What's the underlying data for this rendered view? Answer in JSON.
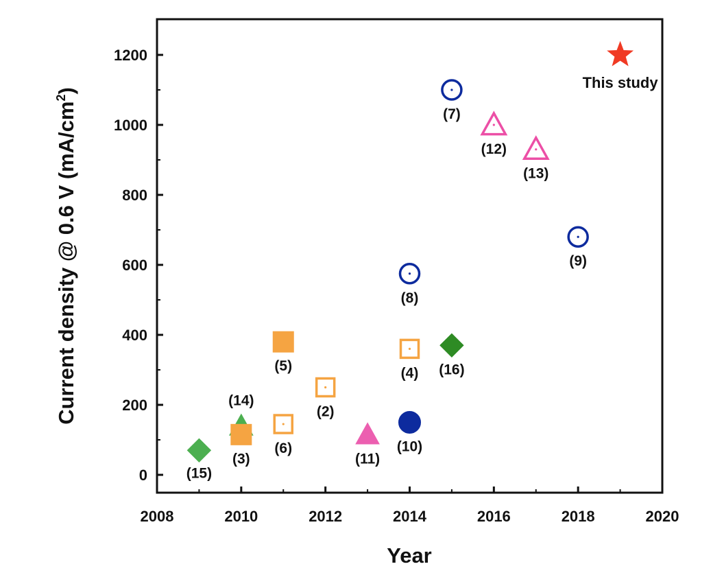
{
  "chart_data": {
    "type": "scatter",
    "xlabel": "Year",
    "ylabel": "Current density @ 0.6 V (mA/cm",
    "ylabel_sup": "2",
    "ylabel_close": ")",
    "xlim": [
      2008,
      2020
    ],
    "ylim": [
      -50,
      1300
    ],
    "xticks": [
      2008,
      2010,
      2012,
      2014,
      2016,
      2018,
      2020
    ],
    "yticks": [
      0,
      200,
      400,
      600,
      800,
      1000,
      1200
    ],
    "grid": false,
    "points": [
      {
        "label": "(15)",
        "x": 2009,
        "y": 70,
        "marker": "diamond",
        "fill": true,
        "color": "#4caf50"
      },
      {
        "label": "(14)",
        "x": 2010,
        "y": 140,
        "marker": "triangle",
        "fill": true,
        "color": "#4caf50"
      },
      {
        "label": "(3)",
        "x": 2010,
        "y": 115,
        "marker": "square",
        "fill": true,
        "color": "#f5a442"
      },
      {
        "label": "(6)",
        "x": 2011,
        "y": 145,
        "marker": "square",
        "fill": false,
        "color": "#f5a442"
      },
      {
        "label": "(5)",
        "x": 2011,
        "y": 380,
        "marker": "square",
        "fill": true,
        "color": "#f5a442"
      },
      {
        "label": "(2)",
        "x": 2012,
        "y": 250,
        "marker": "square",
        "fill": false,
        "color": "#f5a442"
      },
      {
        "label": "(11)",
        "x": 2013,
        "y": 115,
        "marker": "triangle",
        "fill": true,
        "color": "#ec5fb0"
      },
      {
        "label": "(10)",
        "x": 2014,
        "y": 150,
        "marker": "circle",
        "fill": true,
        "color": "#0d2b9e"
      },
      {
        "label": "(4)",
        "x": 2014,
        "y": 360,
        "marker": "square",
        "fill": false,
        "color": "#f5a442"
      },
      {
        "label": "(8)",
        "x": 2014,
        "y": 575,
        "marker": "circle",
        "fill": false,
        "color": "#0d2b9e"
      },
      {
        "label": "(16)",
        "x": 2015,
        "y": 370,
        "marker": "diamond",
        "fill": true,
        "color": "#2e8b24"
      },
      {
        "label": "(7)",
        "x": 2015,
        "y": 1100,
        "marker": "circle",
        "fill": false,
        "color": "#0d2b9e"
      },
      {
        "label": "(12)",
        "x": 2016,
        "y": 1000,
        "marker": "triangle",
        "fill": false,
        "color": "#ec4fa6"
      },
      {
        "label": "(13)",
        "x": 2017,
        "y": 930,
        "marker": "triangle",
        "fill": false,
        "color": "#ec4fa6"
      },
      {
        "label": "(9)",
        "x": 2018,
        "y": 680,
        "marker": "circle",
        "fill": false,
        "color": "#0d2b9e"
      },
      {
        "label": "This study",
        "x": 2019,
        "y": 1200,
        "marker": "star",
        "fill": true,
        "color": "#f03a24"
      }
    ]
  }
}
